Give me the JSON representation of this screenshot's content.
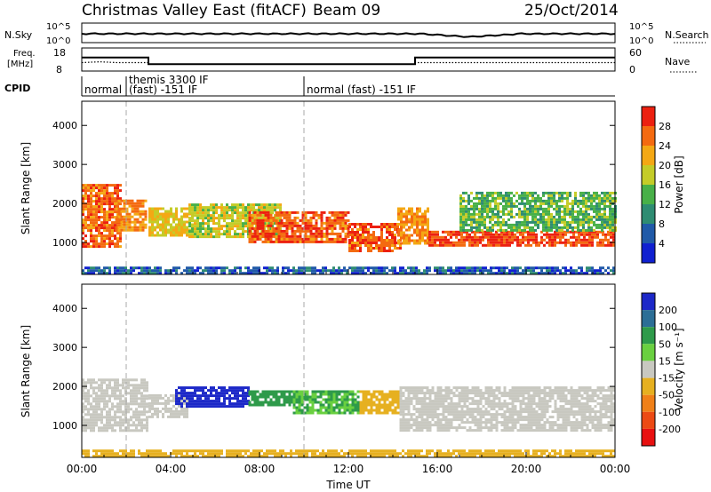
{
  "header": {
    "title": "Christmas Valley East (fitACF)",
    "beam": "Beam 09",
    "date": "25/Oct/2014"
  },
  "noise_panel": {
    "left_label": "N.Sky",
    "right_label": "N.Search",
    "ticks_left": [
      "10^5",
      "10^0"
    ],
    "ticks_right": [
      "10^5",
      "10^0"
    ]
  },
  "freq_panel": {
    "left_label_1": "Freq.",
    "left_label_2": "[MHz]",
    "right_label": "Nave",
    "ticks_left": [
      "18",
      "8"
    ],
    "ticks_right": [
      "60",
      "0"
    ]
  },
  "cpid_panel": {
    "label": "CPID",
    "modes": [
      {
        "line1": "normal",
        "line2": ""
      },
      {
        "line1": "themis 3300 IF",
        "line2": "(fast) -151 IF"
      },
      {
        "line1": "normal (fast) -151 IF",
        "line2": ""
      }
    ]
  },
  "x_axis": {
    "label": "Time UT",
    "ticks": [
      "00:00",
      "04:00",
      "08:00",
      "12:00",
      "16:00",
      "20:00",
      "00:00"
    ]
  },
  "power_panel": {
    "ylabel": "Slant Range [km]",
    "yticks": [
      "1000",
      "2000",
      "3000",
      "4000"
    ],
    "colorbar_label": "Power [dB]",
    "colorbar_ticks": [
      "4",
      "8",
      "12",
      "16",
      "20",
      "24",
      "28"
    ],
    "colors": [
      "#1020d0",
      "#205aa8",
      "#2e8c72",
      "#48b048",
      "#c4cc28",
      "#f4a814",
      "#f46a10",
      "#ec2010"
    ]
  },
  "velocity_panel": {
    "ylabel": "Slant Range [km]",
    "yticks": [
      "1000",
      "2000",
      "3000",
      "4000"
    ],
    "colorbar_label": "Velocity [m s⁻¹]",
    "colorbar_ticks": [
      "200",
      "100",
      "50",
      "15",
      "-15",
      "-50",
      "-100",
      "-200"
    ],
    "colors": [
      "#1c28c8",
      "#2c6e96",
      "#2e9a4a",
      "#6ad040",
      "#c8c8c0",
      "#e6b020",
      "#f08018",
      "#ec4a14",
      "#e81010"
    ]
  },
  "chart_data": {
    "type": "heatmap",
    "title": "Christmas Valley East (fitACF)",
    "x": {
      "label": "Time UT",
      "range_hours": [
        0,
        24
      ]
    },
    "y": {
      "label": "Slant Range [km]",
      "range_km": [
        180,
        4620
      ]
    },
    "panels": [
      {
        "name": "Power",
        "unit": "dB",
        "range": [
          0,
          32
        ]
      },
      {
        "name": "Velocity",
        "unit": "m s⁻¹",
        "range": [
          -240,
          240
        ]
      }
    ],
    "cpid_changes_hours": [
      2.0,
      10.0
    ],
    "frequency_mhz": [
      {
        "from": 0,
        "to": 3,
        "value": 13.9
      },
      {
        "from": 3,
        "to": 15,
        "value": 11.0
      },
      {
        "from": 15,
        "to": 24,
        "value": 13.9
      }
    ],
    "power_bands": [
      {
        "t0": 0.0,
        "t1": 1.7,
        "r0": 900,
        "r1": 2500,
        "level": 26
      },
      {
        "t0": 1.5,
        "t1": 2.9,
        "r0": 1300,
        "r1": 2100,
        "level": 24
      },
      {
        "t0": 3.0,
        "t1": 5.0,
        "r0": 1200,
        "r1": 1900,
        "level": 20
      },
      {
        "t0": 4.8,
        "t1": 9.0,
        "r0": 1150,
        "r1": 2000,
        "level": 18
      },
      {
        "t0": 7.5,
        "t1": 12.0,
        "r0": 1000,
        "r1": 1800,
        "level": 27
      },
      {
        "t0": 12.0,
        "t1": 14.3,
        "r0": 800,
        "r1": 1500,
        "level": 27
      },
      {
        "t0": 14.2,
        "t1": 15.6,
        "r0": 1000,
        "r1": 1900,
        "level": 24
      },
      {
        "t0": 15.6,
        "t1": 18.0,
        "r0": 900,
        "r1": 1300,
        "level": 28
      },
      {
        "t0": 18.0,
        "t1": 24.0,
        "r0": 900,
        "r1": 1300,
        "level": 28
      },
      {
        "t0": 17.0,
        "t1": 24.0,
        "r0": 1300,
        "r1": 2300,
        "level": 14
      },
      {
        "t0": 0.0,
        "t1": 24.0,
        "r0": 230,
        "r1": 380,
        "level": 6
      }
    ],
    "velocity_bands": [
      {
        "t0": 0.0,
        "t1": 2.9,
        "r0": 900,
        "r1": 2200,
        "value": 0
      },
      {
        "t0": 3.0,
        "t1": 4.8,
        "r0": 1200,
        "r1": 1800,
        "value": 0
      },
      {
        "t0": 4.2,
        "t1": 7.5,
        "r0": 1500,
        "r1": 2000,
        "value": 230
      },
      {
        "t0": 7.5,
        "t1": 9.5,
        "r0": 1500,
        "r1": 1900,
        "value": 70
      },
      {
        "t0": 9.5,
        "t1": 12.5,
        "r0": 1300,
        "r1": 1900,
        "value": 30
      },
      {
        "t0": 12.5,
        "t1": 14.3,
        "r0": 1300,
        "r1": 1900,
        "value": -60
      },
      {
        "t0": 14.3,
        "t1": 24.0,
        "r0": 900,
        "r1": 2000,
        "value": 0
      },
      {
        "t0": 0.0,
        "t1": 24.0,
        "r0": 230,
        "r1": 380,
        "value": -40
      }
    ]
  }
}
